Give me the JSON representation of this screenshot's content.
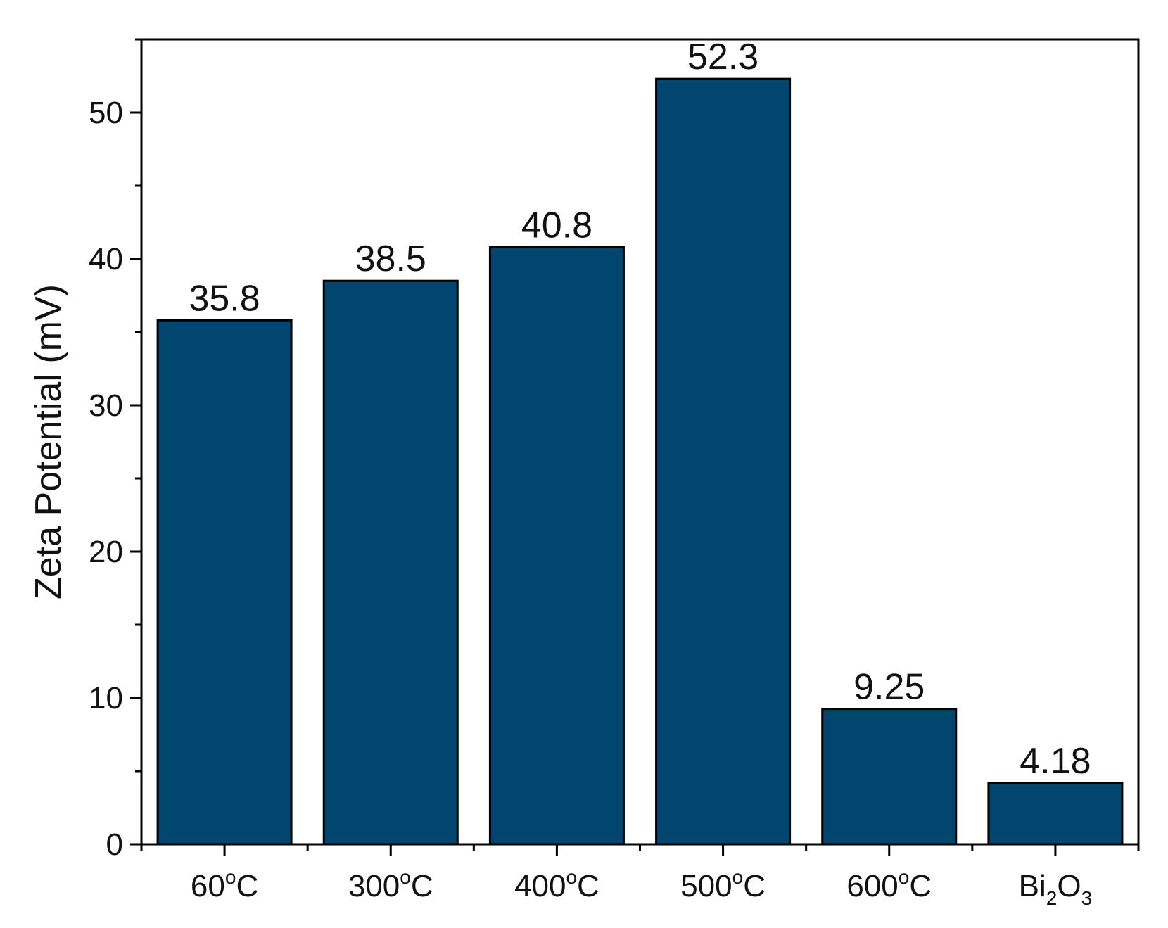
{
  "chart_data": {
    "type": "bar",
    "categories": [
      "60°C",
      "300°C",
      "400°C",
      "500°C",
      "600°C",
      "Bi2O3"
    ],
    "category_labels": [
      {
        "main": "60",
        "sup": "o",
        "tail": "C"
      },
      {
        "main": "300",
        "sup": "o",
        "tail": "C"
      },
      {
        "main": "400",
        "sup": "o",
        "tail": "C"
      },
      {
        "main": "500",
        "sup": "o",
        "tail": "C"
      },
      {
        "main": "600",
        "sup": "o",
        "tail": "C"
      },
      {
        "main": "Bi",
        "sub1": "2",
        "mid": "O",
        "sub2": "3"
      }
    ],
    "values": [
      35.8,
      38.5,
      40.8,
      52.3,
      9.25,
      4.18
    ],
    "value_labels": [
      "35.8",
      "38.5",
      "40.8",
      "52.3",
      "9.25",
      "4.18"
    ],
    "title": "",
    "xlabel": "",
    "ylabel": "Zeta Potential (mV)",
    "ylim": [
      0,
      55
    ],
    "yticks": [
      0,
      10,
      20,
      30,
      40,
      50
    ],
    "grid": false,
    "legend": "none",
    "bar_color": "#00466f"
  }
}
